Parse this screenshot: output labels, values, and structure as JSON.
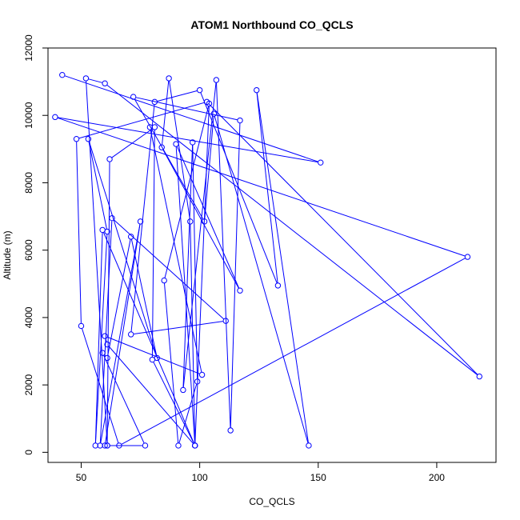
{
  "chart_data": {
    "type": "line",
    "title": "ATOM1 Northbound CO_QCLS",
    "xlabel": "CO_QCLS",
    "ylabel": "Altitude (m)",
    "xlim": [
      36,
      225
    ],
    "ylim": [
      -300,
      12000
    ],
    "x_ticks": [
      50,
      100,
      150,
      200
    ],
    "y_ticks": [
      0,
      2000,
      4000,
      6000,
      8000,
      10000,
      12000
    ],
    "grid": false,
    "legend": "none",
    "colors": {
      "series": "#0000ff",
      "frame": "#000000"
    },
    "markers": "open-circle",
    "series": [
      {
        "x": [
          42,
          151,
          39,
          213,
          66,
          50,
          48,
          103,
          218,
          60,
          52,
          61,
          77,
          59,
          61,
          71,
          82,
          53,
          61,
          56,
          59,
          98,
          90,
          117,
          84,
          87,
          96,
          98,
          80,
          81,
          62,
          61,
          60,
          75,
          58,
          63,
          111,
          71,
          81,
          100,
          133,
          124,
          146,
          106,
          102,
          72,
          117,
          113,
          107,
          93,
          97,
          99,
          91,
          85,
          104,
          98,
          61,
          60,
          101,
          79
        ],
        "y": [
          11200,
          8600,
          9950,
          5800,
          200,
          3750,
          9300,
          10400,
          2250,
          10950,
          11100,
          200,
          200,
          2950,
          2800,
          6400,
          2800,
          9300,
          6550,
          200,
          6600,
          200,
          9150,
          4800,
          9050,
          11100,
          6850,
          200,
          2750,
          9650,
          8700,
          200,
          200,
          6850,
          200,
          6950,
          3900,
          3500,
          10400,
          10750,
          4950,
          10750,
          200,
          10050,
          6850,
          10550,
          9850,
          650,
          11050,
          1850,
          9200,
          2100,
          200,
          5100,
          10350,
          200,
          3200,
          3450,
          2300,
          9650
        ]
      }
    ]
  }
}
